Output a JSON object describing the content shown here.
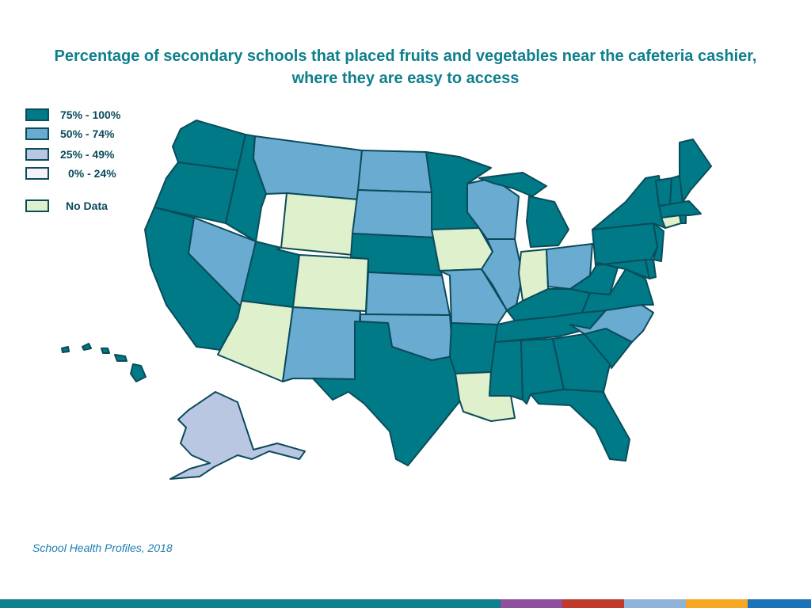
{
  "title": "Percentage of secondary schools that placed fruits and vegetables near the cafeteria cashier, where they are easy to access",
  "legend": [
    {
      "label": "75% - 100%",
      "color": "#007a87"
    },
    {
      "label": "50% - 74%",
      "color": "#6aabd2"
    },
    {
      "label": "25% - 49%",
      "color": "#b9c7e3"
    },
    {
      "label": "0% - 24%",
      "color": "#f4f2f8"
    },
    {
      "label": "No Data",
      "color": "#dff0cd"
    }
  ],
  "source": "School Health Profiles, 2018",
  "map_data": {
    "75% - 100%": [
      "WA",
      "OR",
      "CA",
      "ID",
      "UT",
      "NE",
      "MN",
      "TX",
      "AR",
      "MS",
      "AL",
      "GA",
      "FL",
      "SC",
      "TN",
      "KY",
      "MI",
      "WV",
      "VA",
      "MD",
      "DE",
      "NJ",
      "PA",
      "NY",
      "VT",
      "NH",
      "ME",
      "MA",
      "RI",
      "HI"
    ],
    "50% - 74%": [
      "NV",
      "MT",
      "ND",
      "SD",
      "KS",
      "OK",
      "NM",
      "MO",
      "IL",
      "WI",
      "OH",
      "NC"
    ],
    "25% - 49%": [
      "AK"
    ],
    "0% - 24%": [],
    "No Data": [
      "WY",
      "CO",
      "AZ",
      "IA",
      "IN",
      "LA",
      "CT"
    ]
  },
  "footer_colors": [
    "#0e7f8c",
    "#8e4f9f",
    "#c0392b",
    "#8fb3d9",
    "#f5a623",
    "#1a73b8"
  ]
}
